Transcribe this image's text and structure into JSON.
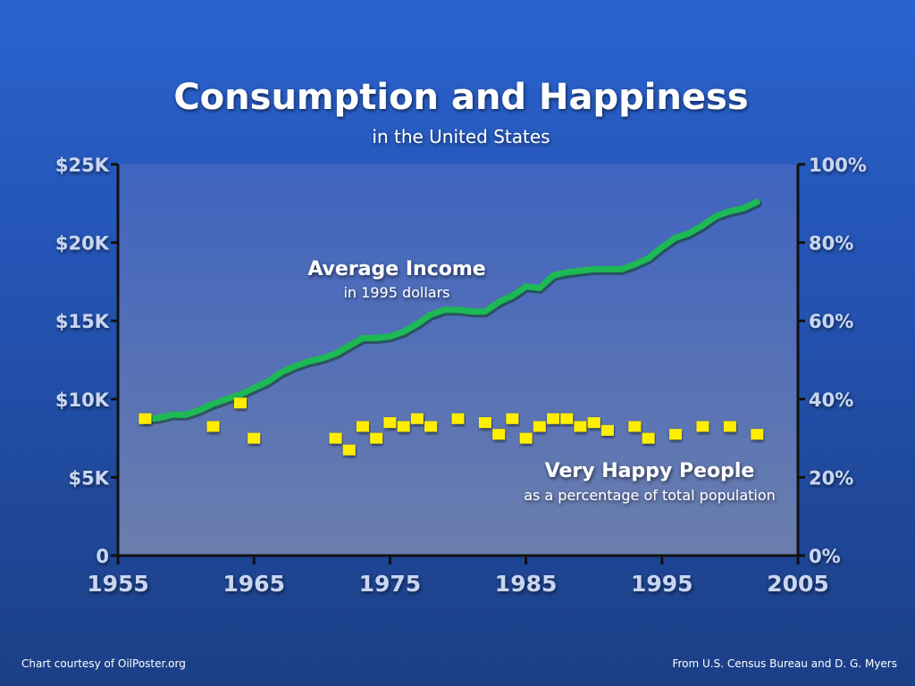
{
  "chart_data": {
    "type": "line",
    "title": "Consumption and Happiness",
    "subtitle": "in the United States",
    "x_ticks": [
      "1955",
      "1965",
      "1975",
      "1985",
      "1995",
      "2005"
    ],
    "xlim": [
      1955,
      2005
    ],
    "y_left_ticks": [
      "0",
      "$5K",
      "$10K",
      "$15K",
      "$20K",
      "$25K"
    ],
    "ylim_left": [
      0,
      25000
    ],
    "y_right_ticks": [
      "0%",
      "20%",
      "40%",
      "60%",
      "80%",
      "100%"
    ],
    "ylim_right": [
      0,
      100
    ],
    "colors": {
      "income": "#1db954",
      "happy": "#ffee00"
    },
    "series": [
      {
        "name": "Average Income",
        "note": "in 1995 dollars",
        "axis": "left",
        "x": [
          1957,
          1958,
          1959,
          1960,
          1961,
          1962,
          1963,
          1964,
          1965,
          1966,
          1967,
          1968,
          1969,
          1970,
          1971,
          1972,
          1973,
          1974,
          1975,
          1976,
          1977,
          1978,
          1979,
          1980,
          1981,
          1982,
          1983,
          1984,
          1985,
          1986,
          1987,
          1988,
          1989,
          1990,
          1991,
          1992,
          1993,
          1994,
          1995,
          1996,
          1997,
          1998,
          1999,
          2000,
          2001,
          2002
        ],
        "values": [
          8700,
          8800,
          9000,
          9000,
          9300,
          9700,
          10000,
          10300,
          10700,
          11100,
          11700,
          12100,
          12400,
          12600,
          12900,
          13400,
          13900,
          13900,
          14000,
          14300,
          14800,
          15400,
          15700,
          15700,
          15600,
          15600,
          16200,
          16600,
          17200,
          17100,
          17900,
          18100,
          18200,
          18300,
          18300,
          18300,
          18600,
          19000,
          19700,
          20300,
          20600,
          21100,
          21700,
          22000,
          22200,
          22600
        ]
      },
      {
        "name": "Very Happy People",
        "note": "as a percentage of total population",
        "axis": "right",
        "x": [
          1957,
          1962,
          1964,
          1965,
          1971,
          1972,
          1973,
          1974,
          1975,
          1976,
          1977,
          1978,
          1980,
          1982,
          1983,
          1984,
          1985,
          1986,
          1987,
          1988,
          1989,
          1990,
          1991,
          1993,
          1994,
          1996,
          1998,
          2000,
          2002
        ],
        "values": [
          35,
          33,
          39,
          30,
          30,
          27,
          33,
          30,
          34,
          33,
          35,
          33,
          35,
          34,
          31,
          35,
          30,
          33,
          35,
          35,
          33,
          34,
          32,
          33,
          30,
          31,
          33,
          33,
          31
        ]
      }
    ]
  },
  "footer": {
    "left": "Chart courtesy of OilPoster.org",
    "right": "From U.S. Census Bureau and D. G. Myers"
  }
}
